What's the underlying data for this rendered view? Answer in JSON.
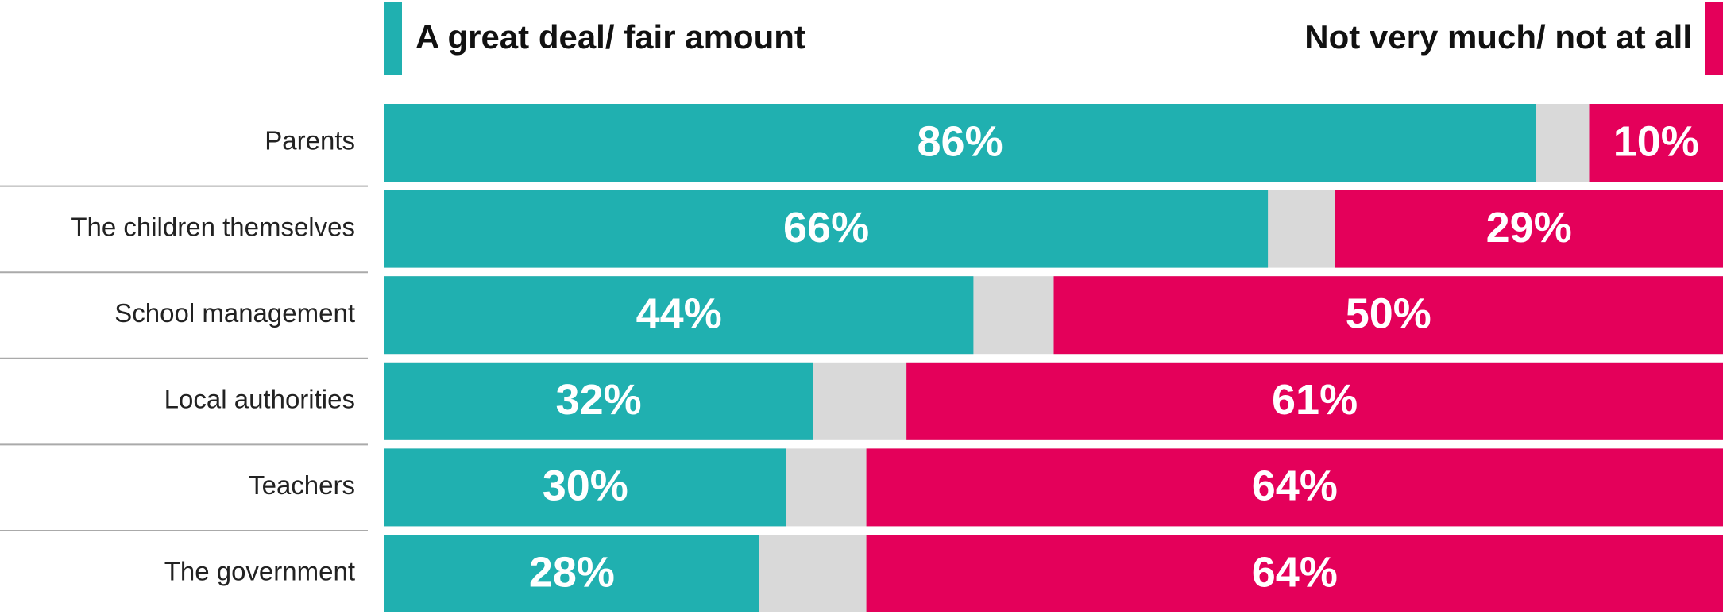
{
  "chart_data": {
    "type": "bar",
    "categories": [
      "Parents",
      "The children themselves",
      "School management",
      "Local authorities",
      "Teachers",
      "The government"
    ],
    "series": [
      {
        "name": "A great deal/ fair amount",
        "color": "#20b0b0",
        "values": [
          86,
          66,
          44,
          32,
          30,
          28
        ],
        "value_labels": [
          "86%",
          "66%",
          "44%",
          "32%",
          "30%",
          "28%"
        ]
      },
      {
        "name": "Not very much/ not at all",
        "color": "#e4005a",
        "values": [
          10,
          29,
          50,
          61,
          64,
          64
        ],
        "value_labels": [
          "10%",
          "29%",
          "50%",
          "61%",
          "64%",
          "64%"
        ]
      }
    ],
    "xlim": [
      0,
      100
    ]
  }
}
